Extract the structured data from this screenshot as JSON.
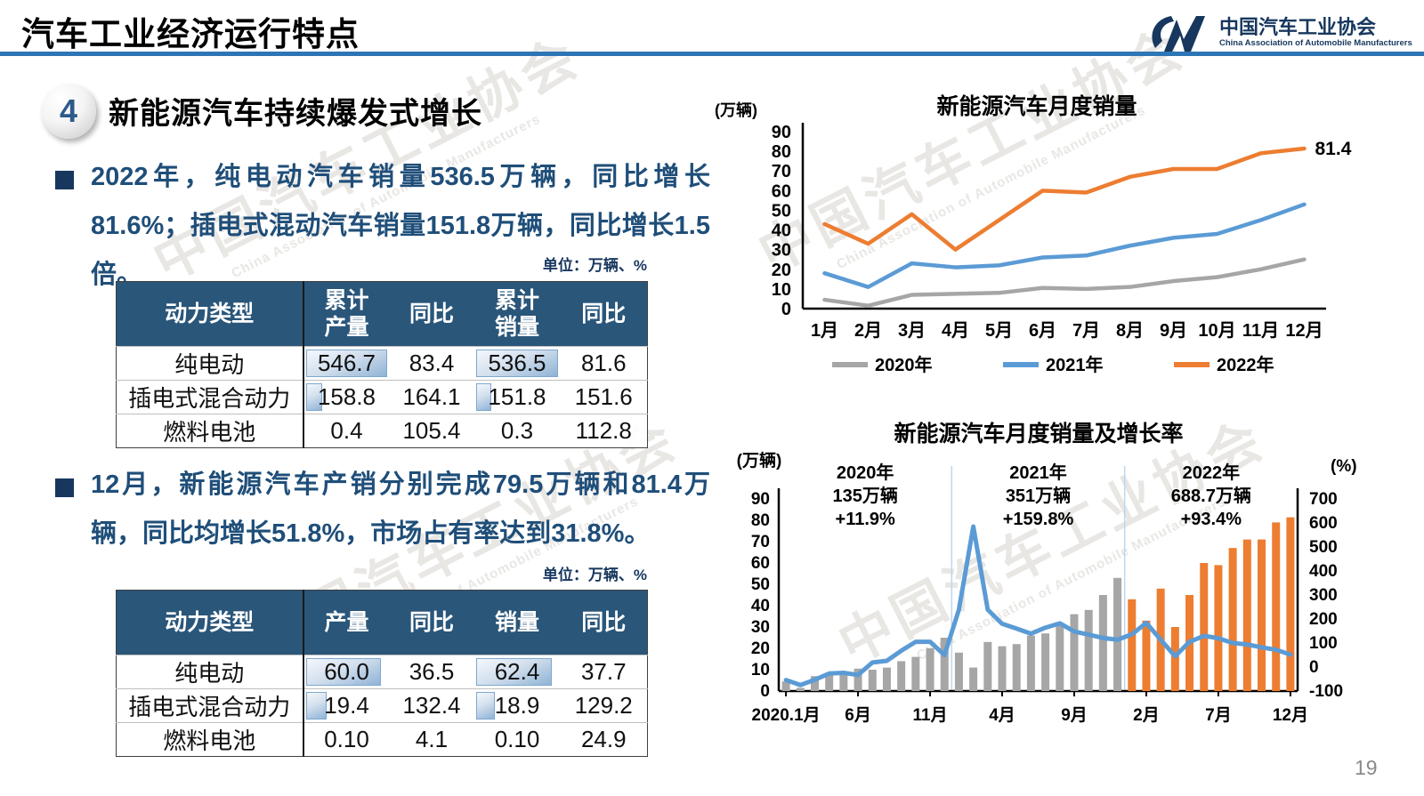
{
  "slide": {
    "title": "汽车工业经济运行特点",
    "page_number": "19",
    "section": {
      "number": "4",
      "heading": "新能源汽车持续爆发式增长"
    },
    "bullet1": "2022年，纯电动汽车销量536.5万辆，同比增长81.6%；插电式混动汽车销量151.8万辆，同比增长1.5倍。",
    "bullet2": "12月，新能源汽车产销分别完成79.5万辆和81.4万辆，同比均增长51.8%，市场占有率达到31.8%。"
  },
  "logo": {
    "org_cn": "中国汽车工业协会",
    "org_en": "China Association of Automobile Manufacturers"
  },
  "watermark": {
    "text_cn": "中国汽车工业协会",
    "text_en": "China Association of Automobile Manufacturers"
  },
  "tables": {
    "cumulative": {
      "unit": "单位：万辆、%",
      "headers": [
        [
          "动力类型"
        ],
        [
          "累计",
          "产量"
        ],
        [
          "同比"
        ],
        [
          "累计",
          "销量"
        ],
        [
          "同比"
        ]
      ],
      "rows": [
        {
          "label": "纯电动",
          "cells": [
            "546.7",
            "83.4",
            "536.5",
            "81.6"
          ],
          "bar_widths": [
            0.95,
            0,
            0.95,
            0
          ]
        },
        {
          "label": "插电式混合动力",
          "cells": [
            "158.8",
            "164.1",
            "151.8",
            "151.6"
          ],
          "bar_widths": [
            0.19,
            0,
            0.18,
            0
          ]
        },
        {
          "label": "燃料电池",
          "cells": [
            "0.4",
            "105.4",
            "0.3",
            "112.8"
          ],
          "bar_widths": [
            0,
            0,
            0,
            0
          ]
        }
      ]
    },
    "december": {
      "unit": "单位：万辆、%",
      "headers": [
        [
          "动力类型"
        ],
        [
          "产量"
        ],
        [
          "同比"
        ],
        [
          "销量"
        ],
        [
          "同比"
        ]
      ],
      "rows": [
        {
          "label": "纯电动",
          "cells": [
            "60.0",
            "36.5",
            "62.4",
            "37.7"
          ],
          "bar_widths": [
            0.88,
            0,
            0.88,
            0
          ]
        },
        {
          "label": "插电式混合动力",
          "cells": [
            "19.4",
            "132.4",
            "18.9",
            "129.2"
          ],
          "bar_widths": [
            0.24,
            0,
            0.22,
            0
          ]
        },
        {
          "label": "燃料电池",
          "cells": [
            "0.10",
            "4.1",
            "0.10",
            "24.9"
          ],
          "bar_widths": [
            0,
            0,
            0,
            0
          ]
        }
      ]
    }
  },
  "chart_data": [
    {
      "type": "line",
      "title": "新能源汽车月度销量",
      "unit_label": "(万辆)",
      "categories": [
        "1月",
        "2月",
        "3月",
        "4月",
        "5月",
        "6月",
        "7月",
        "8月",
        "9月",
        "10月",
        "11月",
        "12月"
      ],
      "series": [
        {
          "name": "2020年",
          "color": "#A6A6A6",
          "values": [
            4.5,
            1.5,
            7,
            7.5,
            8,
            10.5,
            10,
            11,
            14,
            16,
            20,
            25
          ]
        },
        {
          "name": "2021年",
          "color": "#5B9BD5",
          "values": [
            18,
            11,
            23,
            21,
            22,
            26,
            27,
            32,
            36,
            38,
            45,
            53
          ]
        },
        {
          "name": "2022年",
          "color": "#ED7D31",
          "values": [
            43,
            33,
            48,
            30,
            45,
            60,
            59,
            67,
            71,
            71,
            79,
            81.4
          ]
        }
      ],
      "ylim": [
        0,
        90
      ],
      "ytick": 10,
      "grid": false,
      "legend_position": "bottom",
      "end_label": "81.4"
    },
    {
      "type": "bar+line",
      "title": "新能源汽车月度销量及增长率",
      "left_unit": "(万辆)",
      "right_unit": "(%)",
      "left_ylim": [
        0,
        90
      ],
      "left_ytick": 10,
      "right_ylim": [
        -100,
        700
      ],
      "right_ytick": 100,
      "x_tick_labels": [
        "2020.1月",
        "6月",
        "11月",
        "4月",
        "9月",
        "2月",
        "7月",
        "12月"
      ],
      "x_tick_indices": [
        0,
        5,
        10,
        15,
        20,
        25,
        30,
        35
      ],
      "bars": {
        "name": "月度销量(万辆)",
        "colors": {
          "y2020_2021": "#A6A6A6",
          "y2022": "#ED7D31"
        },
        "values": [
          4.5,
          1.5,
          7,
          7.5,
          8,
          10.5,
          10,
          11,
          14,
          16,
          20,
          25,
          18,
          11,
          23,
          21,
          22,
          26,
          27,
          32,
          36,
          38,
          45,
          53,
          43,
          33,
          48,
          30,
          45,
          60,
          59,
          67,
          71,
          71,
          79,
          81.4
        ]
      },
      "line": {
        "name": "同比增长率(%)",
        "color": "#5B9BD5",
        "values": [
          -54,
          -75,
          -53,
          -27,
          -24,
          -33,
          19,
          26,
          68,
          105,
          105,
          50,
          239,
          585,
          239,
          180,
          160,
          139,
          164,
          182,
          148,
          135,
          121,
          114,
          136,
          184,
          114,
          45,
          105,
          130,
          120,
          100,
          94,
          82,
          72,
          52
        ]
      },
      "dividers_after_index": [
        11,
        23
      ],
      "divider_color": "#BDD7EE",
      "annotations": [
        {
          "year": "2020年",
          "volume": "135万辆",
          "growth": "+11.9%"
        },
        {
          "year": "2021年",
          "volume": "351万辆",
          "growth": "+159.8%"
        },
        {
          "year": "2022年",
          "volume": "688.7万辆",
          "growth": "+93.4%"
        }
      ]
    }
  ],
  "colors": {
    "accent_rule": "#2E75B6",
    "dark_blue_text": "#1F4E79",
    "table_header_bg": "#2A567A",
    "series_2020": "#A6A6A6",
    "series_2021": "#5B9BD5",
    "series_2022": "#ED7D31"
  }
}
